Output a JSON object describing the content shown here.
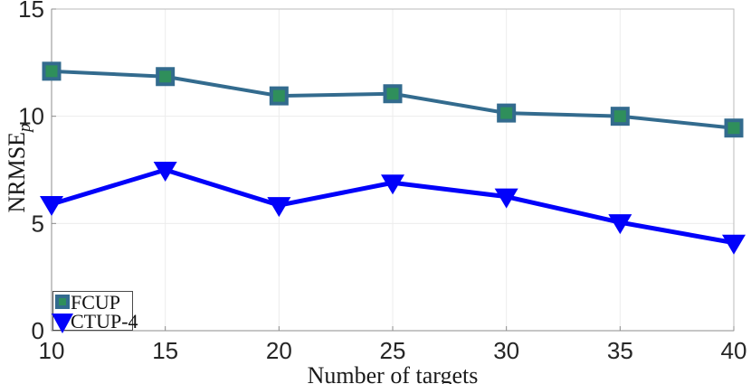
{
  "chart_data": {
    "type": "line",
    "title": "",
    "xlabel": "Number of targets",
    "ylabel": "NRMSE",
    "ylabel_subscript": "p",
    "xlim": [
      10,
      40
    ],
    "ylim": [
      0,
      15
    ],
    "x_ticks": [
      10,
      15,
      20,
      25,
      30,
      35,
      40
    ],
    "y_ticks": [
      0,
      5,
      10,
      15
    ],
    "grid": "on",
    "legend_position": "bottom-left",
    "x": [
      10,
      15,
      20,
      25,
      30,
      35,
      40
    ],
    "series": [
      {
        "name": "FCUP",
        "values": [
          12.1,
          11.85,
          10.95,
          11.05,
          10.15,
          10.0,
          9.45
        ],
        "line_color": "#336b8e",
        "line_width": 4,
        "marker": "square",
        "marker_fill": "#2f8f5b",
        "marker_edge": "#336b8e"
      },
      {
        "name": "CTUP-4",
        "values": [
          5.9,
          7.5,
          5.85,
          6.9,
          6.25,
          5.05,
          4.1
        ],
        "line_color": "#0202fa",
        "line_width": 5,
        "marker": "triangle-down",
        "marker_fill": "#0202fa",
        "marker_edge": "#0202fa"
      }
    ]
  },
  "style": {
    "background": "#ffffff",
    "grid_color": "#ececec",
    "box_color": "#bbbbbb",
    "axis_color": "#8c8c8c",
    "tick_label_color": "#262626",
    "legend_border_color": "#4a4a4a"
  }
}
